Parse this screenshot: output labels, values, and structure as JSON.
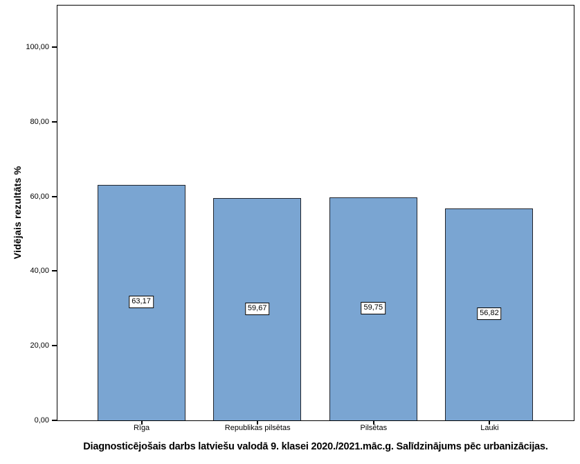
{
  "chart_data": {
    "type": "bar",
    "title": "Diagnosticējošais darbs latviešu valodā 9. klasei 2020./2021.māc.g. Salīdzinājums pēc urbanizācijas.",
    "ylabel": "Vidējais rezultāts %",
    "xlabel": "",
    "categories": [
      "Rīga",
      "Republikas pilsētas",
      "Pilsētas",
      "Lauki"
    ],
    "values": [
      63.17,
      59.67,
      59.75,
      56.82
    ],
    "value_labels": [
      "63,17",
      "59,67",
      "59,75",
      "56,82"
    ],
    "ytick_values": [
      0,
      20,
      40,
      60,
      80,
      100
    ],
    "ytick_labels": [
      "0,00",
      "20,00",
      "40,00",
      "60,00",
      "80,00",
      "100,00"
    ],
    "ylim": [
      0,
      111.1
    ],
    "grid": false,
    "legend_position": "none",
    "bar_color": "#7aa5d2",
    "bar_border_color": "#21242b",
    "axis_color": "#000000",
    "background_color": "#ffffff"
  }
}
